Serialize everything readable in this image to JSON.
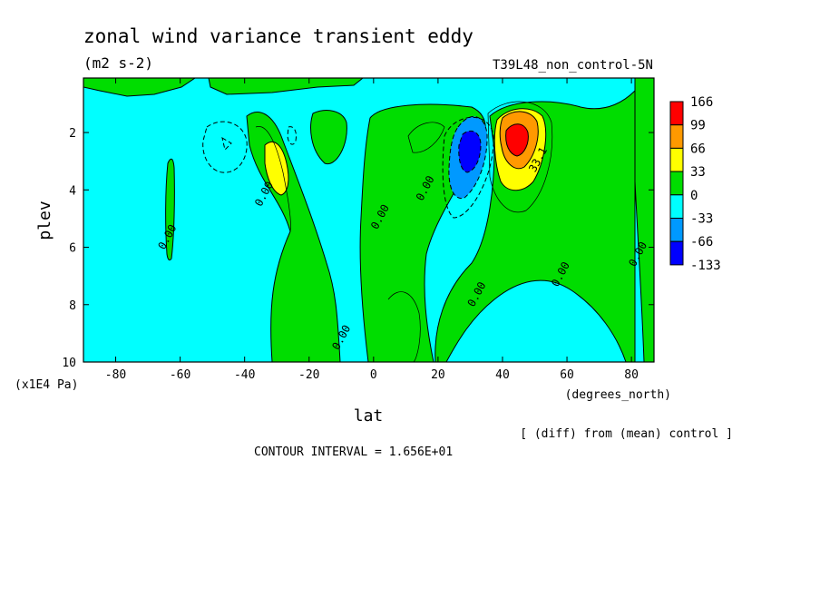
{
  "chart_data": {
    "type": "heatmap",
    "title": "zonal wind variance transient eddy",
    "units": "(m2 s-2)",
    "run_label": "T39L48_non_control-5N",
    "xlabel": "lat",
    "x_units": "(degrees_north)",
    "ylabel": "plev",
    "y_units": "(x1E4 Pa)",
    "xlim": [
      -90,
      87
    ],
    "ylim": [
      10,
      0.1
    ],
    "x_ticks": [
      -80,
      -60,
      -40,
      -20,
      0,
      20,
      40,
      60,
      80
    ],
    "y_ticks": [
      2,
      4,
      6,
      8,
      10
    ],
    "diff_note": "[ (diff) from (mean) control ]",
    "contour_interval": "CONTOUR INTERVAL = 1.656E+01",
    "colorbar": {
      "labels": [
        "166",
        "99",
        "66",
        "33",
        "0",
        "-33",
        "-66",
        "-133"
      ],
      "colors": [
        "#ff0000",
        "#ff9900",
        "#ffff00",
        "#00dd00",
        "#00ffff",
        "#0099ff",
        "#0000ff"
      ]
    },
    "contour_labels": [
      {
        "text": "0.00",
        "lat": -33,
        "plev": 4.2
      },
      {
        "text": "0.00",
        "lat": -63,
        "plev": 5.7
      },
      {
        "text": "0.00",
        "lat": 3,
        "plev": 5.0
      },
      {
        "text": "0.00",
        "lat": 17,
        "plev": 4.0
      },
      {
        "text": "0.00",
        "lat": 33,
        "plev": 7.7
      },
      {
        "text": "0.00",
        "lat": 59,
        "plev": 7.0
      },
      {
        "text": "0.00",
        "lat": -9,
        "plev": 9.2
      },
      {
        "text": "0.00",
        "lat": 83,
        "plev": 6.3
      },
      {
        "text": "33.1",
        "lat": 52,
        "plev": 3.0
      }
    ]
  }
}
